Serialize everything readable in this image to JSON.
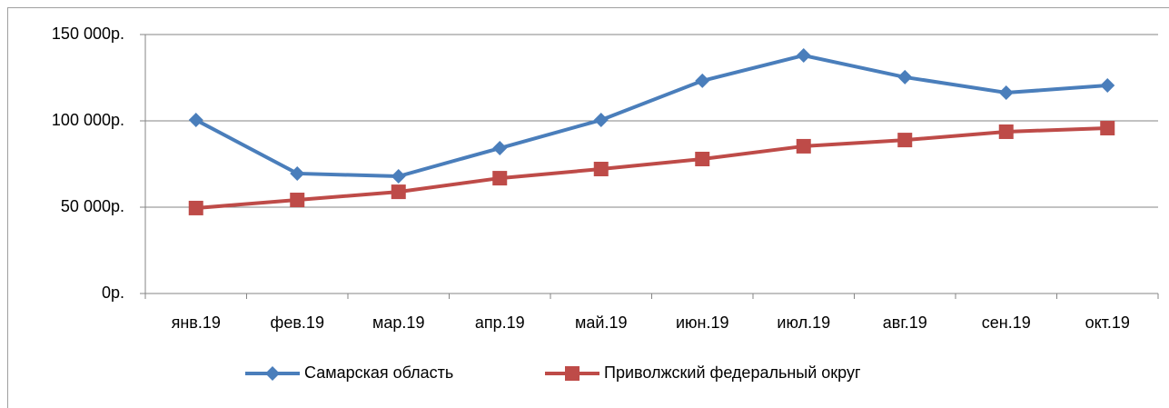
{
  "chart_data": {
    "type": "line",
    "categories": [
      "янв.19",
      "фев.19",
      "мар.19",
      "апр.19",
      "май.19",
      "июн.19",
      "июл.19",
      "авг.19",
      "сен.19",
      "окт.19"
    ],
    "series": [
      {
        "name": "Самарская область",
        "color": "#4a7ebb",
        "marker": "diamond",
        "values": [
          100500,
          69500,
          67900,
          84200,
          100500,
          123200,
          137900,
          125300,
          116300,
          120500
        ]
      },
      {
        "name": "Приволжский федеральный округ",
        "color": "#be4b48",
        "marker": "square",
        "values": [
          49500,
          54200,
          58900,
          66800,
          72100,
          77900,
          85300,
          88900,
          93700,
          95800
        ]
      }
    ],
    "ylim": [
      0,
      150000
    ],
    "yticks": [
      {
        "value": 0,
        "label": "0р."
      },
      {
        "value": 50000,
        "label": "50 000р."
      },
      {
        "value": 100000,
        "label": "100 000р."
      },
      {
        "value": 150000,
        "label": "150 000р."
      }
    ],
    "grid": true,
    "legend": "bottom"
  }
}
